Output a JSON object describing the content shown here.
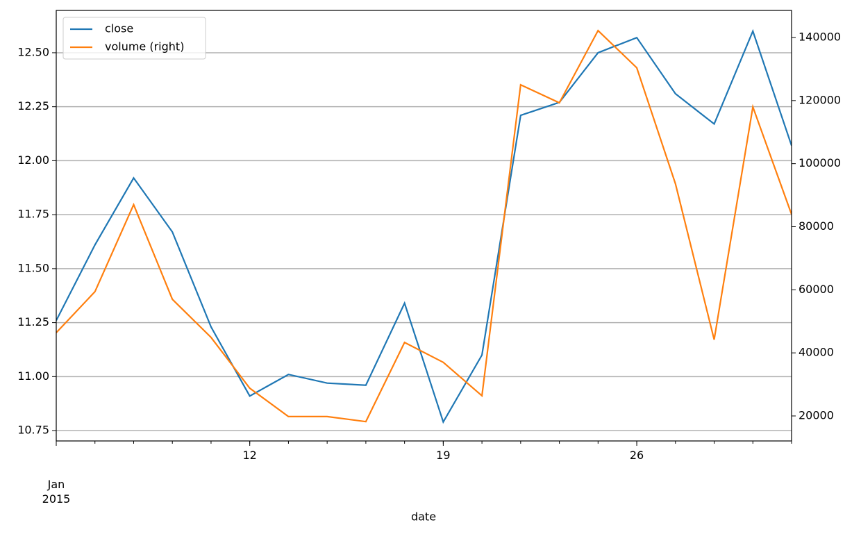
{
  "chart_data": {
    "type": "line",
    "x": [
      "2015-01-05",
      "2015-01-06",
      "2015-01-07",
      "2015-01-08",
      "2015-01-09",
      "2015-01-12",
      "2015-01-13",
      "2015-01-14",
      "2015-01-15",
      "2015-01-16",
      "2015-01-19",
      "2015-01-20",
      "2015-01-21",
      "2015-01-22",
      "2015-01-23",
      "2015-01-26",
      "2015-01-27",
      "2015-01-28",
      "2015-01-29",
      "2015-01-30"
    ],
    "xticks": [
      {
        "value": "2015-01-05",
        "label": "Jan\n2015"
      },
      {
        "value": "2015-01-12",
        "label": "12"
      },
      {
        "value": "2015-01-19",
        "label": "19"
      },
      {
        "value": "2015-01-26",
        "label": "26"
      }
    ],
    "xlabel": "date",
    "series": [
      {
        "name": "close",
        "color": "#1f77b4",
        "values": [
          11.26,
          11.61,
          11.92,
          11.67,
          11.23,
          10.91,
          11.01,
          10.97,
          10.96,
          11.34,
          10.79,
          11.1,
          12.21,
          12.27,
          12.5,
          12.57,
          12.31,
          12.17,
          12.6,
          12.07
        ]
      },
      {
        "name": "volume (right)",
        "color": "#ff7f0e",
        "axis": "y2",
        "values": [
          46400,
          59400,
          87000,
          57000,
          44900,
          28800,
          19800,
          19800,
          18200,
          43300,
          37000,
          26400,
          125000,
          119300,
          142200,
          130400,
          93600,
          44200,
          118000,
          83900
        ]
      }
    ],
    "ylim": [
      10.702,
      12.696
    ],
    "yticks": [
      {
        "value": 10.75,
        "label": "10.75"
      },
      {
        "value": 11,
        "label": "11.00"
      },
      {
        "value": 11.25,
        "label": "11.25"
      },
      {
        "value": 11.5,
        "label": "11.50"
      },
      {
        "value": 11.75,
        "label": "11.75"
      },
      {
        "value": 12,
        "label": "12.00"
      },
      {
        "value": 12.25,
        "label": "12.25"
      },
      {
        "value": 12.5,
        "label": "12.50"
      }
    ],
    "y2lim": [
      12070,
      148590
    ],
    "y2ticks": [
      20000,
      40000,
      60000,
      80000,
      100000,
      120000,
      140000
    ],
    "grid": true,
    "legend": "upper left"
  }
}
